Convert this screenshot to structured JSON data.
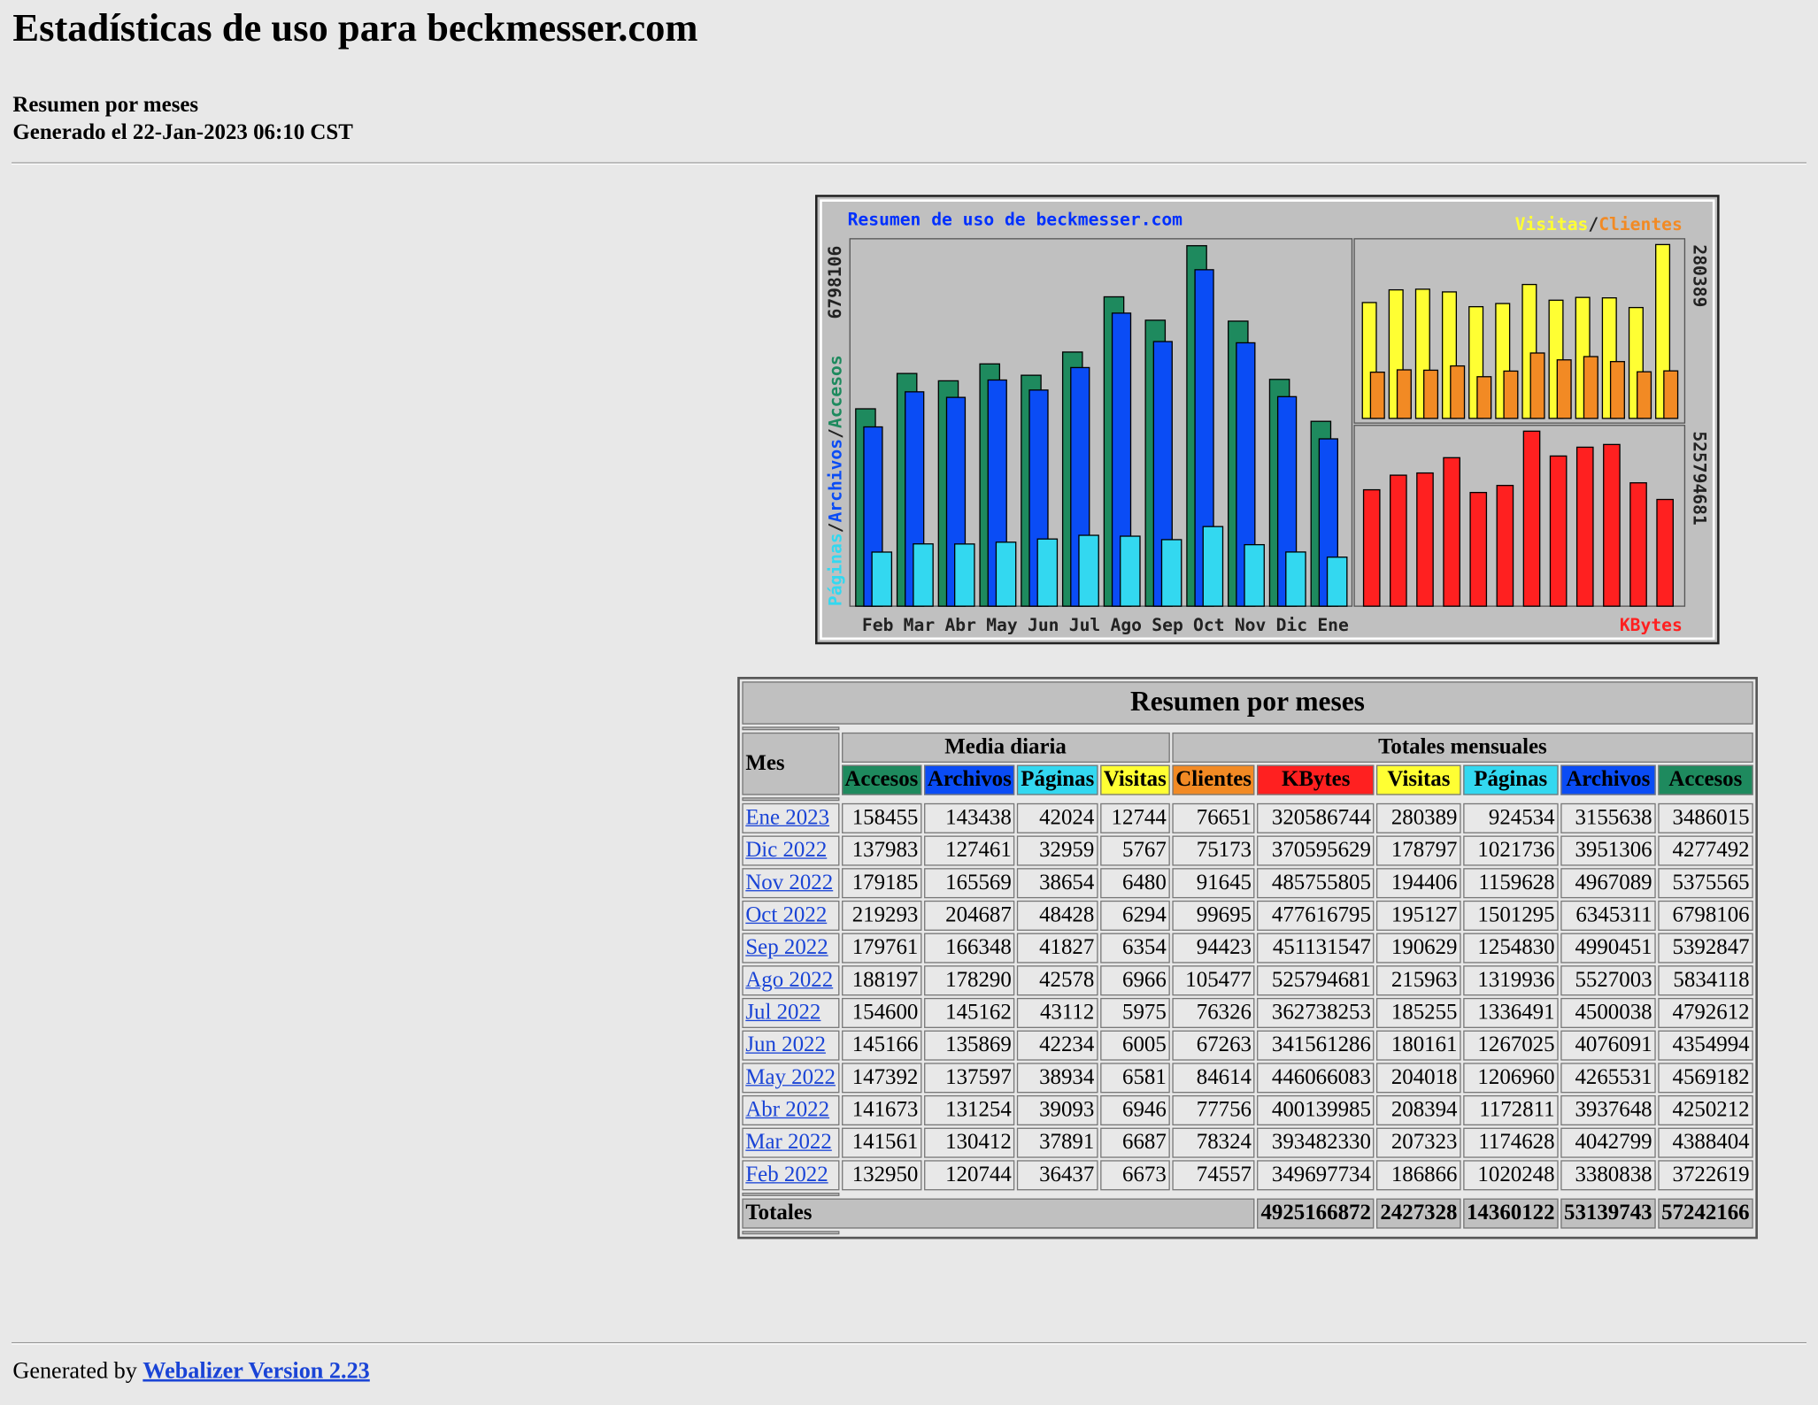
{
  "header": {
    "title": "Estadísticas de uso para beckmesser.com",
    "subtitle": "Resumen por meses",
    "generated": "Generado el 22-Jan-2023 06:10 CST"
  },
  "chart_data": [
    {
      "type": "bar",
      "title": "Resumen de uso de beckmesser.com",
      "categories": [
        "Feb",
        "Mar",
        "Abr",
        "May",
        "Jun",
        "Jul",
        "Ago",
        "Sep",
        "Oct",
        "Nov",
        "Dic",
        "Ene"
      ],
      "separator": "/",
      "series": [
        {
          "name": "Accesos",
          "color": "#1e8a5e",
          "values": [
            3722619,
            4388404,
            4250212,
            4569182,
            4354994,
            4792612,
            5834118,
            5392847,
            6798106,
            5375565,
            4277492,
            3486015
          ]
        },
        {
          "name": "Archivos",
          "color": "#0a4cf5",
          "values": [
            3380838,
            4042799,
            3937648,
            4265531,
            4076091,
            4500038,
            5527003,
            4990451,
            6345311,
            4967089,
            3951306,
            3155638
          ]
        },
        {
          "name": "Páginas",
          "color": "#33d8f0",
          "values": [
            1020248,
            1174628,
            1172811,
            1206960,
            1267025,
            1336491,
            1319936,
            1254830,
            1501295,
            1159628,
            1021736,
            924534
          ]
        }
      ],
      "ylim": [
        0,
        6798106
      ],
      "yticks": [
        6798106
      ]
    },
    {
      "type": "bar",
      "separator": "/",
      "series": [
        {
          "name": "Visitas",
          "color": "#ffff33",
          "values": [
            186866,
            207323,
            208394,
            204018,
            180161,
            185255,
            215963,
            190629,
            195127,
            194406,
            178797,
            280389
          ]
        },
        {
          "name": "Clientes",
          "color": "#f28a24",
          "values": [
            74557,
            78324,
            77756,
            84614,
            67263,
            76326,
            105477,
            94423,
            99695,
            91645,
            75173,
            76651
          ]
        }
      ],
      "ylim": [
        0,
        280389
      ],
      "yticks": [
        280389
      ]
    },
    {
      "type": "bar",
      "series": [
        {
          "name": "KBytes",
          "color": "#ff2020",
          "values": [
            349697734,
            393482330,
            400139985,
            446066083,
            341561286,
            362738253,
            525794681,
            451131547,
            477616795,
            485755805,
            370595629,
            320586744
          ]
        }
      ],
      "ylim": [
        0,
        525794681
      ],
      "yticks": [
        525794681
      ]
    }
  ],
  "table": {
    "title": "Resumen por meses",
    "month_header": "Mes",
    "daily_header": "Media diaria",
    "monthly_header": "Totales mensuales",
    "daily_columns": [
      {
        "name": "Accesos",
        "color": "#1e8a5e"
      },
      {
        "name": "Archivos",
        "color": "#0a4cf5"
      },
      {
        "name": "Páginas",
        "color": "#33d8f0"
      },
      {
        "name": "Visitas",
        "color": "#ffff33"
      }
    ],
    "monthly_columns": [
      {
        "name": "Clientes",
        "color": "#f28a24"
      },
      {
        "name": "KBytes",
        "color": "#ff2020"
      },
      {
        "name": "Visitas",
        "color": "#ffff33"
      },
      {
        "name": "Páginas",
        "color": "#33d8f0"
      },
      {
        "name": "Archivos",
        "color": "#0a4cf5"
      },
      {
        "name": "Accesos",
        "color": "#1e8a5e"
      }
    ],
    "rows": [
      {
        "month": "Ene 2023",
        "daily": [
          158455,
          143438,
          42024,
          12744
        ],
        "monthly": [
          76651,
          320586744,
          280389,
          924534,
          3155638,
          3486015
        ]
      },
      {
        "month": "Dic 2022",
        "daily": [
          137983,
          127461,
          32959,
          5767
        ],
        "monthly": [
          75173,
          370595629,
          178797,
          1021736,
          3951306,
          4277492
        ]
      },
      {
        "month": "Nov 2022",
        "daily": [
          179185,
          165569,
          38654,
          6480
        ],
        "monthly": [
          91645,
          485755805,
          194406,
          1159628,
          4967089,
          5375565
        ]
      },
      {
        "month": "Oct 2022",
        "daily": [
          219293,
          204687,
          48428,
          6294
        ],
        "monthly": [
          99695,
          477616795,
          195127,
          1501295,
          6345311,
          6798106
        ]
      },
      {
        "month": "Sep 2022",
        "daily": [
          179761,
          166348,
          41827,
          6354
        ],
        "monthly": [
          94423,
          451131547,
          190629,
          1254830,
          4990451,
          5392847
        ]
      },
      {
        "month": "Ago 2022",
        "daily": [
          188197,
          178290,
          42578,
          6966
        ],
        "monthly": [
          105477,
          525794681,
          215963,
          1319936,
          5527003,
          5834118
        ]
      },
      {
        "month": "Jul 2022",
        "daily": [
          154600,
          145162,
          43112,
          5975
        ],
        "monthly": [
          76326,
          362738253,
          185255,
          1336491,
          4500038,
          4792612
        ]
      },
      {
        "month": "Jun 2022",
        "daily": [
          145166,
          135869,
          42234,
          6005
        ],
        "monthly": [
          67263,
          341561286,
          180161,
          1267025,
          4076091,
          4354994
        ]
      },
      {
        "month": "May 2022",
        "daily": [
          147392,
          137597,
          38934,
          6581
        ],
        "monthly": [
          84614,
          446066083,
          204018,
          1206960,
          4265531,
          4569182
        ]
      },
      {
        "month": "Abr 2022",
        "daily": [
          141673,
          131254,
          39093,
          6946
        ],
        "monthly": [
          77756,
          400139985,
          208394,
          1172811,
          3937648,
          4250212
        ]
      },
      {
        "month": "Mar 2022",
        "daily": [
          141561,
          130412,
          37891,
          6687
        ],
        "monthly": [
          78324,
          393482330,
          207323,
          1174628,
          4042799,
          4388404
        ]
      },
      {
        "month": "Feb 2022",
        "daily": [
          132950,
          120744,
          36437,
          6673
        ],
        "monthly": [
          74557,
          349697734,
          186866,
          1020248,
          3380838,
          3722619
        ]
      }
    ],
    "totals": {
      "label": "Totales",
      "values": [
        4925166872,
        2427328,
        14360122,
        53139743,
        57242166
      ]
    }
  },
  "footer": {
    "text": "Generated by",
    "link": "Webalizer Version 2.23"
  }
}
